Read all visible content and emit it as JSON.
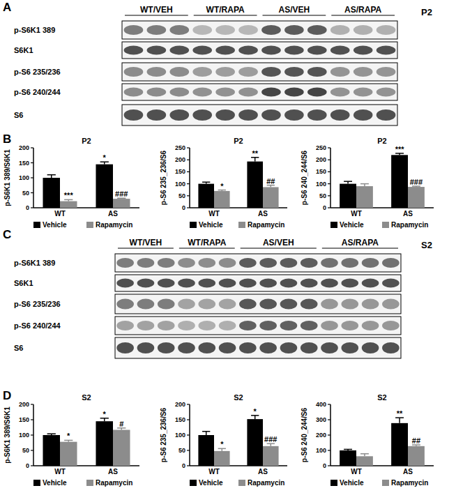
{
  "figure": {
    "blots": [
      {
        "letter": "A",
        "fraction": "P2",
        "groups": [
          {
            "label": "WT/VEH",
            "lanes": 3
          },
          {
            "label": "WT/RAPA",
            "lanes": 3
          },
          {
            "label": "AS/VEH",
            "lanes": 3
          },
          {
            "label": "AS/RAPA",
            "lanes": 3
          }
        ],
        "rows": [
          "p-S6K1 389",
          "S6K1",
          "p-S6 235/236",
          "p-S6 240/244",
          "S6"
        ]
      },
      {
        "letter": "C",
        "fraction": "S2",
        "groups": [
          {
            "label": "WT/VEH",
            "lanes": 3
          },
          {
            "label": "WT/RAPA",
            "lanes": 3
          },
          {
            "label": "AS/VEH",
            "lanes": 4
          },
          {
            "label": "AS/RAPA",
            "lanes": 4
          }
        ],
        "rows": [
          "p-S6K1 389",
          "S6K1",
          "p-S6 235/236",
          "p-S6 240/244",
          "S6"
        ]
      }
    ],
    "chart_letters": [
      "B",
      "D"
    ]
  },
  "chart_data": [
    {
      "type": "bar",
      "title": "P2",
      "y_label": "p-S6K1 389/S6K1",
      "categories": [
        "WT",
        "AS"
      ],
      "series": [
        {
          "name": "Vehicle",
          "color": "#000000",
          "values": [
            100,
            145
          ],
          "errors": [
            10,
            8
          ],
          "annotations": [
            null,
            "*"
          ]
        },
        {
          "name": "Rapamycin",
          "color": "#8c8c8c",
          "values": [
            22,
            30
          ],
          "errors": [
            5,
            2
          ],
          "annotations": [
            "***",
            "###"
          ]
        }
      ],
      "ylim": [
        0,
        200
      ],
      "yticks": [
        0,
        50,
        100,
        150,
        200
      ],
      "grid": false,
      "legend": "bottom"
    },
    {
      "type": "bar",
      "title": "P2",
      "y_label": "p-S6 235_236/S6",
      "categories": [
        "WT",
        "AS"
      ],
      "series": [
        {
          "name": "Vehicle",
          "color": "#000000",
          "values": [
            100,
            193
          ],
          "errors": [
            7,
            17
          ],
          "annotations": [
            null,
            "**"
          ]
        },
        {
          "name": "Rapamycin",
          "color": "#8c8c8c",
          "values": [
            70,
            86
          ],
          "errors": [
            4,
            8
          ],
          "annotations": [
            "*",
            "##"
          ]
        }
      ],
      "ylim": [
        0,
        250
      ],
      "yticks": [
        0,
        50,
        100,
        150,
        200,
        250
      ],
      "grid": false,
      "legend": "bottom"
    },
    {
      "type": "bar",
      "title": "P2",
      "y_label": "p-S6 240_244/S6",
      "categories": [
        "WT",
        "AS"
      ],
      "series": [
        {
          "name": "Vehicle",
          "color": "#000000",
          "values": [
            100,
            220
          ],
          "errors": [
            10,
            7
          ],
          "annotations": [
            null,
            "***"
          ]
        },
        {
          "name": "Rapamycin",
          "color": "#8c8c8c",
          "values": [
            90,
            87
          ],
          "errors": [
            10,
            3
          ],
          "annotations": [
            null,
            "###"
          ]
        }
      ],
      "ylim": [
        0,
        250
      ],
      "yticks": [
        0,
        50,
        100,
        150,
        200,
        250
      ],
      "grid": false,
      "legend": "bottom"
    },
    {
      "type": "bar",
      "title": "S2",
      "y_label": "p-S6K1 389/S6K1",
      "categories": [
        "WT",
        "AS"
      ],
      "series": [
        {
          "name": "Vehicle",
          "color": "#000000",
          "values": [
            100,
            145
          ],
          "errors": [
            4,
            10
          ],
          "annotations": [
            null,
            "*"
          ]
        },
        {
          "name": "Rapamycin",
          "color": "#8c8c8c",
          "values": [
            78,
            117
          ],
          "errors": [
            5,
            6
          ],
          "annotations": [
            "*",
            "#"
          ]
        }
      ],
      "ylim": [
        0,
        200
      ],
      "yticks": [
        0,
        50,
        100,
        150,
        200
      ],
      "grid": false,
      "legend": "bottom"
    },
    {
      "type": "bar",
      "title": "S2",
      "y_label": "p-S6 235_236/S6",
      "categories": [
        "WT",
        "AS"
      ],
      "series": [
        {
          "name": "Vehicle",
          "color": "#000000",
          "values": [
            100,
            152
          ],
          "errors": [
            12,
            12
          ],
          "annotations": [
            null,
            "*"
          ]
        },
        {
          "name": "Rapamycin",
          "color": "#8c8c8c",
          "values": [
            48,
            64
          ],
          "errors": [
            8,
            8
          ],
          "annotations": [
            "*",
            "###"
          ]
        }
      ],
      "ylim": [
        0,
        200
      ],
      "yticks": [
        0,
        50,
        100,
        150,
        200
      ],
      "grid": false,
      "legend": "bottom"
    },
    {
      "type": "bar",
      "title": "S2",
      "y_label": "p-S6 240_244/S6",
      "categories": [
        "WT",
        "AS"
      ],
      "series": [
        {
          "name": "Vehicle",
          "color": "#000000",
          "values": [
            100,
            278
          ],
          "errors": [
            7,
            35
          ],
          "annotations": [
            null,
            "**"
          ]
        },
        {
          "name": "Rapamycin",
          "color": "#8c8c8c",
          "values": [
            62,
            128
          ],
          "errors": [
            16,
            8
          ],
          "annotations": [
            null,
            "##"
          ]
        }
      ],
      "ylim": [
        0,
        400
      ],
      "yticks": [
        0,
        100,
        200,
        300,
        400
      ],
      "grid": false,
      "legend": "bottom"
    }
  ]
}
